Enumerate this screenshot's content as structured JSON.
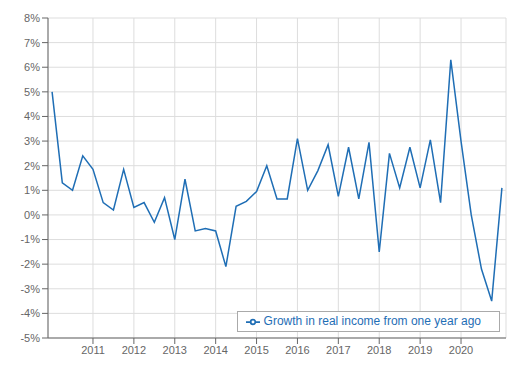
{
  "chart_data": {
    "type": "line",
    "x": [
      2010.0,
      2010.25,
      2010.5,
      2010.75,
      2011.0,
      2011.25,
      2011.5,
      2011.75,
      2012.0,
      2012.25,
      2012.5,
      2012.75,
      2013.0,
      2013.25,
      2013.5,
      2013.75,
      2014.0,
      2014.25,
      2014.5,
      2014.75,
      2015.0,
      2015.25,
      2015.5,
      2015.75,
      2016.0,
      2016.25,
      2016.5,
      2016.75,
      2017.0,
      2017.25,
      2017.5,
      2017.75,
      2018.0,
      2018.25,
      2018.5,
      2018.75,
      2019.0,
      2019.25,
      2019.5,
      2019.75,
      2020.0,
      2020.25,
      2020.5,
      2020.75,
      2021.0
    ],
    "series": [
      {
        "name": "Growth in real income from one year ago",
        "color": "#1f6eb5",
        "values": [
          5.0,
          1.3,
          1.0,
          2.4,
          1.85,
          0.5,
          0.2,
          1.85,
          0.3,
          0.5,
          -0.3,
          0.7,
          -1.0,
          1.45,
          -0.65,
          -0.55,
          -0.65,
          -2.1,
          0.35,
          0.55,
          0.95,
          2.0,
          0.65,
          0.65,
          3.1,
          1.0,
          1.8,
          2.85,
          0.75,
          2.75,
          0.65,
          2.95,
          -1.5,
          2.5,
          1.1,
          2.75,
          1.1,
          3.05,
          0.5,
          6.3,
          3.0,
          0.0,
          -2.2,
          -3.5,
          1.1
        ]
      }
    ],
    "xlim": [
      2009.9,
      2021.1
    ],
    "xticks": [
      2011,
      2012,
      2013,
      2014,
      2015,
      2016,
      2017,
      2018,
      2019,
      2020
    ],
    "ylim": [
      -5,
      8
    ],
    "yticks": [
      {
        "value": -5,
        "label": "-5%"
      },
      {
        "value": -4,
        "label": "-4%"
      },
      {
        "value": -3,
        "label": "-3%"
      },
      {
        "value": -2,
        "label": "-2%"
      },
      {
        "value": -1,
        "label": "-1%"
      },
      {
        "value": 0,
        "label": "0%"
      },
      {
        "value": 1,
        "label": "1%"
      },
      {
        "value": 2,
        "label": "2%"
      },
      {
        "value": 3,
        "label": "3%"
      },
      {
        "value": 4,
        "label": "4%"
      },
      {
        "value": 5,
        "label": "5%"
      },
      {
        "value": 6,
        "label": "6%"
      },
      {
        "value": 7,
        "label": "7%"
      },
      {
        "value": 8,
        "label": "8%"
      }
    ],
    "grid": true,
    "legend": "lower right"
  }
}
